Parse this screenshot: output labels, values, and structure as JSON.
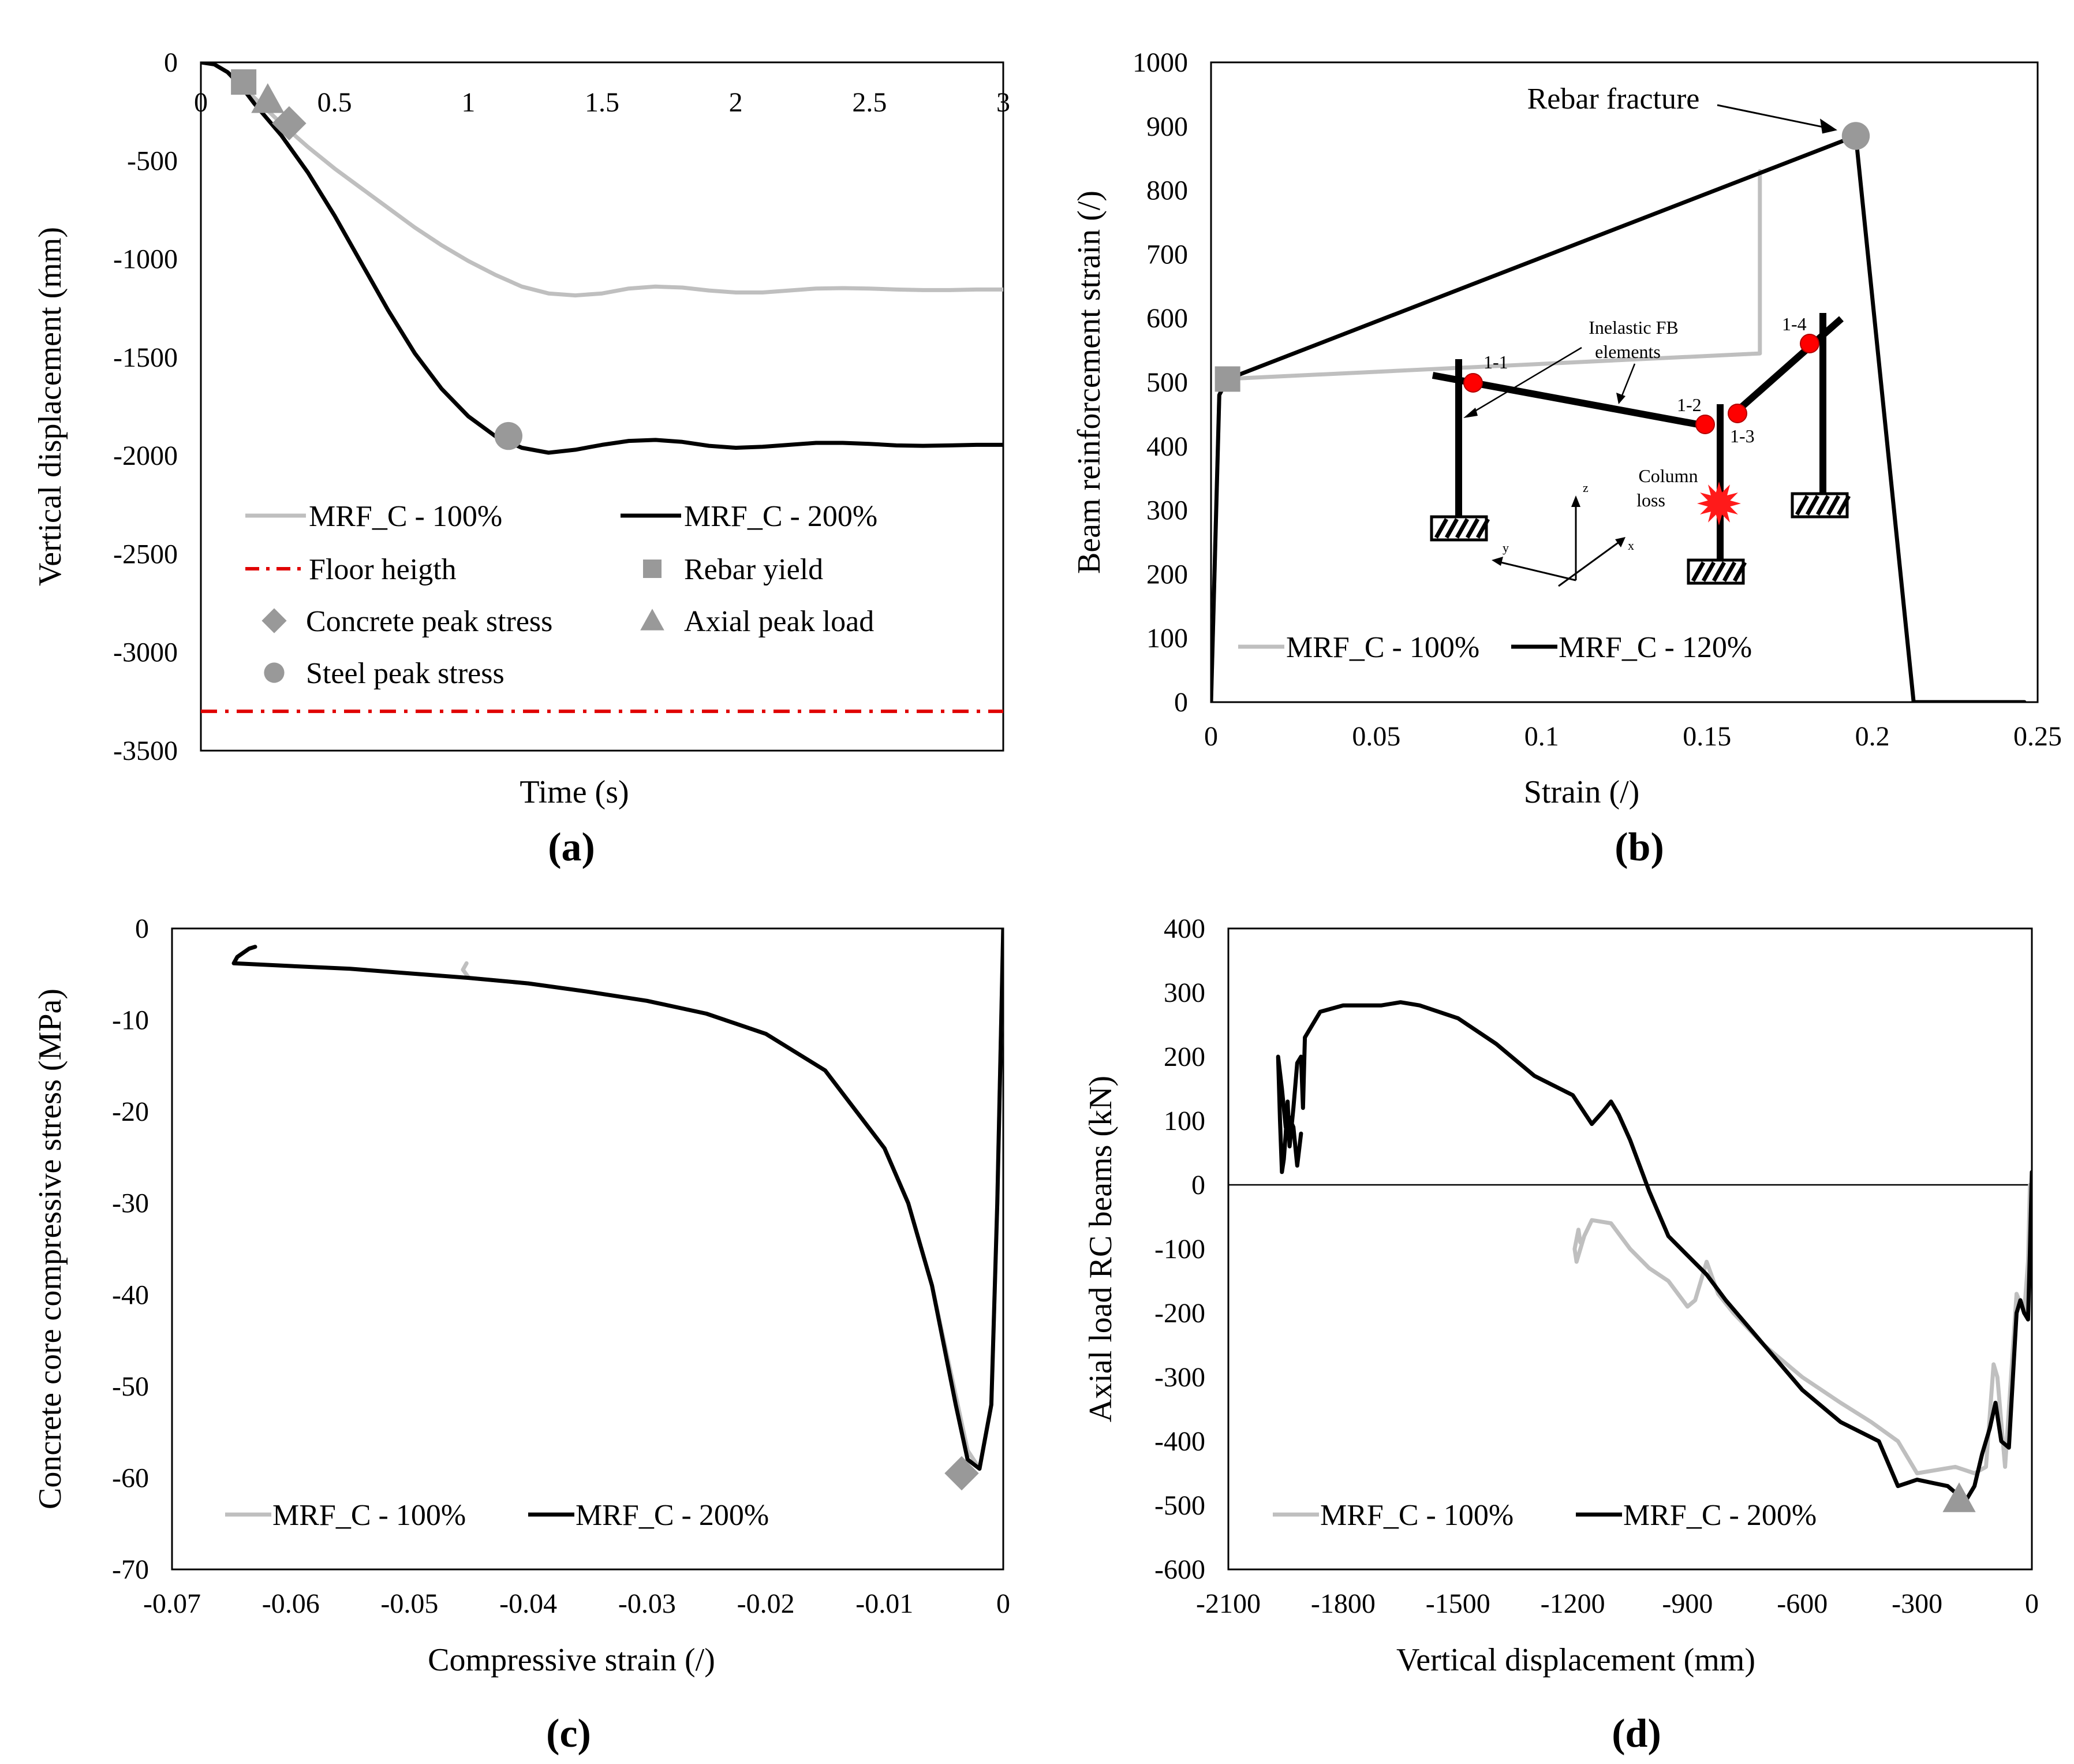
{
  "chart_data": [
    {
      "id": "a",
      "type": "line",
      "panel_label": "(a)",
      "title": "",
      "xlabel": "Time (s)",
      "ylabel": "Vertical displacement (mm)",
      "xlim": [
        0,
        3
      ],
      "ylim": [
        -3500,
        0
      ],
      "xticks": [
        0,
        0.5,
        1,
        1.5,
        2,
        2.5,
        3
      ],
      "xtick_labels": [
        "0",
        "0.5",
        "1",
        "1.5",
        "2",
        "2.5",
        "3"
      ],
      "yticks": [
        0,
        -500,
        -1000,
        -1500,
        -2000,
        -2500,
        -3000,
        -3500
      ],
      "ytick_labels": [
        "0",
        "-500",
        "-1000",
        "-1500",
        "-2000",
        "-2500",
        "-3000",
        "-3500"
      ],
      "series": [
        {
          "name": "MRF_C - 100%",
          "color": "#bfbfbf",
          "x": [
            0,
            0.05,
            0.1,
            0.15,
            0.2,
            0.3,
            0.4,
            0.5,
            0.6,
            0.7,
            0.8,
            0.9,
            1.0,
            1.1,
            1.2,
            1.3,
            1.4,
            1.5,
            1.6,
            1.7,
            1.8,
            1.9,
            2.0,
            2.1,
            2.2,
            2.3,
            2.4,
            2.5,
            2.6,
            2.7,
            2.8,
            2.9,
            3.0
          ],
          "y": [
            0,
            -10,
            -50,
            -110,
            -180,
            -310,
            -430,
            -540,
            -640,
            -740,
            -840,
            -930,
            -1010,
            -1080,
            -1140,
            -1175,
            -1185,
            -1175,
            -1150,
            -1140,
            -1145,
            -1160,
            -1170,
            -1170,
            -1160,
            -1150,
            -1148,
            -1150,
            -1155,
            -1158,
            -1158,
            -1155,
            -1155
          ]
        },
        {
          "name": "MRF_C - 200%",
          "color": "#000000",
          "x": [
            0,
            0.05,
            0.1,
            0.15,
            0.2,
            0.3,
            0.4,
            0.5,
            0.6,
            0.7,
            0.8,
            0.9,
            1.0,
            1.1,
            1.2,
            1.3,
            1.4,
            1.5,
            1.6,
            1.7,
            1.8,
            1.9,
            2.0,
            2.1,
            2.2,
            2.3,
            2.4,
            2.5,
            2.6,
            2.7,
            2.8,
            2.9,
            3.0
          ],
          "y": [
            0,
            -10,
            -50,
            -120,
            -210,
            -370,
            -560,
            -780,
            -1020,
            -1260,
            -1480,
            -1660,
            -1800,
            -1900,
            -1960,
            -1985,
            -1970,
            -1945,
            -1925,
            -1920,
            -1930,
            -1950,
            -1960,
            -1955,
            -1945,
            -1935,
            -1935,
            -1940,
            -1948,
            -1950,
            -1948,
            -1945,
            -1945
          ]
        },
        {
          "name": "Floor heigth",
          "color": "#e00000",
          "style": "dash-dot",
          "x": [
            0,
            3
          ],
          "y": [
            -3300,
            -3300
          ]
        }
      ],
      "markers": [
        {
          "name": "Rebar yield",
          "shape": "square",
          "x": 0.16,
          "y": -100
        },
        {
          "name": "Concrete peak stress",
          "shape": "diamond",
          "x": 0.33,
          "y": -310
        },
        {
          "name": "Axial peak load",
          "shape": "triangle",
          "x": 0.25,
          "y": -190
        },
        {
          "name": "Steel peak stress",
          "shape": "circle",
          "x": 1.15,
          "y": -1900
        }
      ],
      "legend": [
        "MRF_C - 100%",
        "MRF_C - 200%",
        "Floor heigth",
        "Rebar yield",
        "Concrete peak stress",
        "Axial peak load",
        "Steel peak stress"
      ],
      "legend_position": "bottom"
    },
    {
      "id": "b",
      "type": "line",
      "panel_label": "(b)",
      "title": "",
      "xlabel": "Strain (/)",
      "ylabel": "Beam reinforcement strain (/)",
      "xlim": [
        0,
        0.25
      ],
      "ylim": [
        0,
        1000
      ],
      "xticks": [
        0,
        0.05,
        0.1,
        0.15,
        0.2,
        0.25
      ],
      "xtick_labels": [
        "0",
        "0.05",
        "0.1",
        "0.15",
        "0.2",
        "0.25"
      ],
      "yticks": [
        0,
        100,
        200,
        300,
        400,
        500,
        600,
        700,
        800,
        900,
        1000
      ],
      "ytick_labels": [
        "0",
        "100",
        "200",
        "300",
        "400",
        "500",
        "600",
        "700",
        "800",
        "900",
        "1000"
      ],
      "series": [
        {
          "name": "MRF_C - 100%",
          "color": "#bfbfbf",
          "x": [
            0.0,
            0.0025,
            0.004,
            0.166,
            0.166
          ],
          "y": [
            0,
            480,
            505,
            545,
            830
          ]
        },
        {
          "name": "MRF_C - 120%",
          "color": "#000000",
          "x": [
            0.0,
            0.0025,
            0.005,
            0.195,
            0.2125,
            0.246
          ],
          "y": [
            0,
            480,
            505,
            885,
            0,
            0
          ]
        }
      ],
      "markers": [
        {
          "name": "Rebar yield",
          "shape": "square",
          "x": 0.005,
          "y": 505
        },
        {
          "name": "Rebar fracture",
          "shape": "circle",
          "x": 0.195,
          "y": 885
        }
      ],
      "annotations": {
        "rebar_fracture": "Rebar fracture",
        "inelastic": "Inelastic FB",
        "elements": "elements",
        "column": "Column",
        "loss": "loss",
        "n11": "1-1",
        "n12": "1-2",
        "n13": "1-3",
        "n14": "1-4",
        "ax_z": "z",
        "ax_y": "y",
        "ax_x": "x"
      },
      "legend": [
        "MRF_C - 100%",
        "MRF_C - 120%"
      ],
      "legend_position": "bottom-left"
    },
    {
      "id": "c",
      "type": "line",
      "panel_label": "(c)",
      "title": "",
      "xlabel": "Compressive strain (/)",
      "ylabel": "Concrete core compressive stress (MPa)",
      "xlim": [
        -0.07,
        0
      ],
      "ylim": [
        -70,
        0
      ],
      "xticks": [
        -0.07,
        -0.06,
        -0.05,
        -0.04,
        -0.03,
        -0.02,
        -0.01,
        0
      ],
      "xtick_labels": [
        "-0.07",
        "-0.06",
        "-0.05",
        "-0.04",
        "-0.03",
        "-0.02",
        "-0.01",
        "0"
      ],
      "yticks": [
        0,
        -10,
        -20,
        -30,
        -40,
        -50,
        -60,
        -70
      ],
      "ytick_labels": [
        "0",
        "-10",
        "-20",
        "-30",
        "-40",
        "-50",
        "-60",
        "-70"
      ],
      "series": [
        {
          "name": "MRF_C - 100%",
          "color": "#bfbfbf",
          "x": [
            0,
            -0.0005,
            -0.001,
            -0.002,
            -0.003,
            -0.004,
            -0.006,
            -0.008,
            -0.01,
            -0.015,
            -0.02,
            -0.025,
            -0.03,
            -0.035,
            -0.04,
            -0.045,
            -0.0455,
            -0.0452
          ],
          "y": [
            0,
            -30,
            -52,
            -59,
            -57,
            -51,
            -39,
            -30,
            -24,
            -15.5,
            -11.5,
            -9.3,
            -7.9,
            -6.9,
            -6.0,
            -5.4,
            -4.5,
            -3.8
          ]
        },
        {
          "name": "MRF_C - 200%",
          "color": "#000000",
          "x": [
            0,
            -0.0005,
            -0.001,
            -0.002,
            -0.003,
            -0.004,
            -0.006,
            -0.008,
            -0.01,
            -0.015,
            -0.02,
            -0.025,
            -0.03,
            -0.035,
            -0.04,
            -0.045,
            -0.05,
            -0.055,
            -0.06,
            -0.0648,
            -0.0645,
            -0.0635,
            -0.063
          ],
          "y": [
            0,
            -30,
            -52,
            -59,
            -58,
            -52,
            -39,
            -30,
            -24,
            -15.5,
            -11.5,
            -9.3,
            -7.9,
            -6.9,
            -6.0,
            -5.4,
            -4.9,
            -4.4,
            -4.1,
            -3.8,
            -3.1,
            -2.2,
            -2.0
          ]
        }
      ],
      "markers": [
        {
          "name": "Concrete peak stress",
          "shape": "diamond",
          "x": -0.0035,
          "y": -59.5
        }
      ],
      "legend": [
        "MRF_C - 100%",
        "MRF_C - 200%"
      ],
      "legend_position": "bottom-left"
    },
    {
      "id": "d",
      "type": "line",
      "panel_label": "(d)",
      "title": "",
      "xlabel": "Vertical displacement (mm)",
      "ylabel": "Axial load RC beams (kN)",
      "xlim": [
        -2100,
        0
      ],
      "ylim": [
        -600,
        400
      ],
      "xticks": [
        -2100,
        -1800,
        -1500,
        -1200,
        -900,
        -600,
        -300,
        0
      ],
      "xtick_labels": [
        "-2100",
        "-1800",
        "-1500",
        "-1200",
        "-900",
        "-600",
        "-300",
        "0"
      ],
      "yticks": [
        400,
        300,
        200,
        100,
        0,
        -100,
        -200,
        -300,
        -400,
        -500,
        -600
      ],
      "ytick_labels": [
        "400",
        "300",
        "200",
        "100",
        "0",
        "-100",
        "-200",
        "-300",
        "-400",
        "-500",
        "-600"
      ],
      "series": [
        {
          "name": "MRF_C - 100%",
          "color": "#bfbfbf",
          "x": [
            -5,
            -10,
            -20,
            -40,
            -70,
            -90,
            -100,
            -120,
            -150,
            -200,
            -250,
            -300,
            -350,
            -420,
            -500,
            -600,
            -700,
            -780,
            -820,
            -850,
            -880,
            -900,
            -950,
            -1000,
            -1050,
            -1100,
            -1150,
            -1170,
            -1190,
            -1195,
            -1185,
            -1180
          ],
          "y": [
            0,
            -120,
            -200,
            -170,
            -440,
            -300,
            -280,
            -440,
            -450,
            -440,
            -445,
            -450,
            -400,
            -370,
            -340,
            -300,
            -250,
            -200,
            -170,
            -120,
            -180,
            -190,
            -150,
            -130,
            -100,
            -60,
            -55,
            -80,
            -120,
            -100,
            -70,
            -90
          ]
        },
        {
          "name": "MRF_C - 200%",
          "color": "#000000",
          "x": [
            0,
            -5,
            -10,
            -20,
            -30,
            -40,
            -60,
            -80,
            -95,
            -110,
            -130,
            -150,
            -170,
            -190,
            -200,
            -220,
            -260,
            -300,
            -350,
            -400,
            -500,
            -600,
            -700,
            -800,
            -850,
            -900,
            -950,
            -1000,
            -1050,
            -1080,
            -1100,
            -1120,
            -1150,
            -1200,
            -1300,
            -1400,
            -1500,
            -1600,
            -1650,
            -1700,
            -1800,
            -1860,
            -1900,
            -1905,
            -1910,
            -1920,
            -1930,
            -1940,
            -1945,
            -1950,
            -1955,
            -1960,
            -1965,
            -1970,
            -1960,
            -1950,
            -1945,
            -1930,
            -1920,
            -1910
          ],
          "y": [
            20,
            -100,
            -210,
            -200,
            -180,
            -200,
            -410,
            -400,
            -340,
            -380,
            -420,
            -470,
            -490,
            -485,
            -480,
            -470,
            -465,
            -460,
            -470,
            -400,
            -370,
            -320,
            -250,
            -180,
            -140,
            -110,
            -80,
            -10,
            70,
            110,
            130,
            115,
            95,
            140,
            170,
            220,
            260,
            280,
            285,
            280,
            280,
            270,
            230,
            120,
            200,
            190,
            120,
            60,
            130,
            80,
            40,
            20,
            100,
            200,
            150,
            90,
            110,
            90,
            30,
            80
          ]
        }
      ],
      "markers": [
        {
          "name": "Axial peak load",
          "shape": "triangle",
          "x": -190,
          "y": -490
        }
      ],
      "legend": [
        "MRF_C - 100%",
        "MRF_C - 200%"
      ],
      "legend_position": "bottom-left"
    }
  ]
}
